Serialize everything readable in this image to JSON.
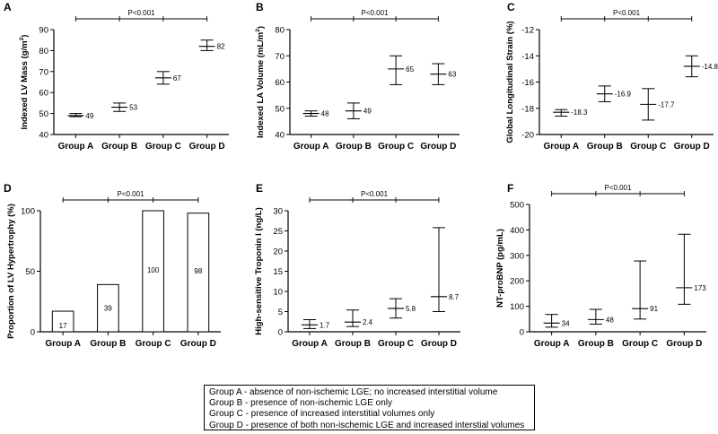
{
  "chart_data": [
    {
      "panel": "A",
      "type": "errorbar",
      "ylabel_pre": "Indexed LV Mass (g/m",
      "ylabel_sup": "2",
      "ylabel_post": ")",
      "ylim": [
        40,
        90
      ],
      "yticks": [
        40,
        50,
        60,
        70,
        80,
        90
      ],
      "categories": [
        "Group A",
        "Group B",
        "Group C",
        "Group D"
      ],
      "values": [
        49,
        53,
        67,
        82
      ],
      "lower": [
        48.5,
        51,
        64,
        80
      ],
      "upper": [
        50,
        55,
        70,
        85
      ],
      "value_labels": [
        "49",
        "53",
        "67",
        "82"
      ],
      "significance": "P<0.001"
    },
    {
      "panel": "B",
      "type": "errorbar",
      "ylabel_pre": "Indexed LA Volume (mL/m",
      "ylabel_sup": "2",
      "ylabel_post": ")",
      "ylim": [
        40,
        80
      ],
      "yticks": [
        40,
        50,
        60,
        70,
        80
      ],
      "categories": [
        "Group A",
        "Group B",
        "Group C",
        "Group D"
      ],
      "values": [
        48,
        49,
        65,
        63
      ],
      "lower": [
        47,
        46,
        59,
        59
      ],
      "upper": [
        49,
        52,
        70,
        67
      ],
      "value_labels": [
        "48",
        "49",
        "65",
        "63"
      ],
      "significance": "P<0.001"
    },
    {
      "panel": "C",
      "type": "errorbar",
      "ylabel_pre": "Global Longitudinal Strain (%)",
      "ylabel_sup": "",
      "ylabel_post": "",
      "ylim": [
        -20,
        -12
      ],
      "yticks": [
        -20,
        -18,
        -16,
        -14,
        -12
      ],
      "categories": [
        "Group A",
        "Group B",
        "Group C",
        "Group D"
      ],
      "values": [
        -18.3,
        -16.9,
        -17.7,
        -14.8
      ],
      "lower": [
        -18.6,
        -17.5,
        -18.9,
        -15.6
      ],
      "upper": [
        -18.1,
        -16.3,
        -16.5,
        -14.0
      ],
      "value_labels": [
        "-18.3",
        "-16.9",
        "-17.7",
        "-14.8"
      ],
      "significance": "P<0.001"
    },
    {
      "panel": "D",
      "type": "bar",
      "ylabel_pre": "Proportion of LV Hypertrophy (%)",
      "ylabel_sup": "",
      "ylabel_post": "",
      "ylim": [
        0,
        100
      ],
      "yticks": [
        0,
        50,
        100
      ],
      "categories": [
        "Group A",
        "Group B",
        "Group C",
        "Group D"
      ],
      "values": [
        17,
        39,
        100,
        98
      ],
      "value_labels": [
        "17",
        "39",
        "100",
        "98"
      ],
      "significance": "P<0.001"
    },
    {
      "panel": "E",
      "type": "errorbar",
      "ylabel_pre": "High-sensitive Troponin I (ng/L)",
      "ylabel_sup": "",
      "ylabel_post": "",
      "ylim": [
        0,
        30
      ],
      "yticks": [
        0,
        5,
        10,
        15,
        20,
        25,
        30
      ],
      "categories": [
        "Group A",
        "Group B",
        "Group C",
        "Group D"
      ],
      "values": [
        1.7,
        2.4,
        5.8,
        8.7
      ],
      "lower": [
        0.8,
        1.3,
        3.4,
        5.0
      ],
      "upper": [
        3.0,
        5.4,
        8.2,
        25.8
      ],
      "value_labels": [
        "1.7",
        "2.4",
        "5.8",
        "8.7"
      ],
      "significance": "P<0.001"
    },
    {
      "panel": "F",
      "type": "errorbar",
      "ylabel_pre": "NT-proBNP (pg/mL)",
      "ylabel_sup": "",
      "ylabel_post": "",
      "ylim": [
        0,
        500
      ],
      "yticks": [
        0,
        100,
        200,
        300,
        400,
        500
      ],
      "categories": [
        "Group A",
        "Group B",
        "Group C",
        "Group D"
      ],
      "values": [
        34,
        48,
        91,
        173
      ],
      "lower": [
        18,
        30,
        50,
        108
      ],
      "upper": [
        68,
        88,
        278,
        383
      ],
      "value_labels": [
        "34",
        "48",
        "91",
        "173"
      ],
      "significance": "P<0.001"
    }
  ],
  "legend": {
    "lines": [
      "Group A - absence of non-ischemic LGE; no increased interstitial volume",
      "Group B - presence of non-ischemic LGE only",
      "Group C - presence of increased interstitial volumes only",
      "Group D - presence of both non-ischemic LGE and increased interstial volumes"
    ]
  }
}
